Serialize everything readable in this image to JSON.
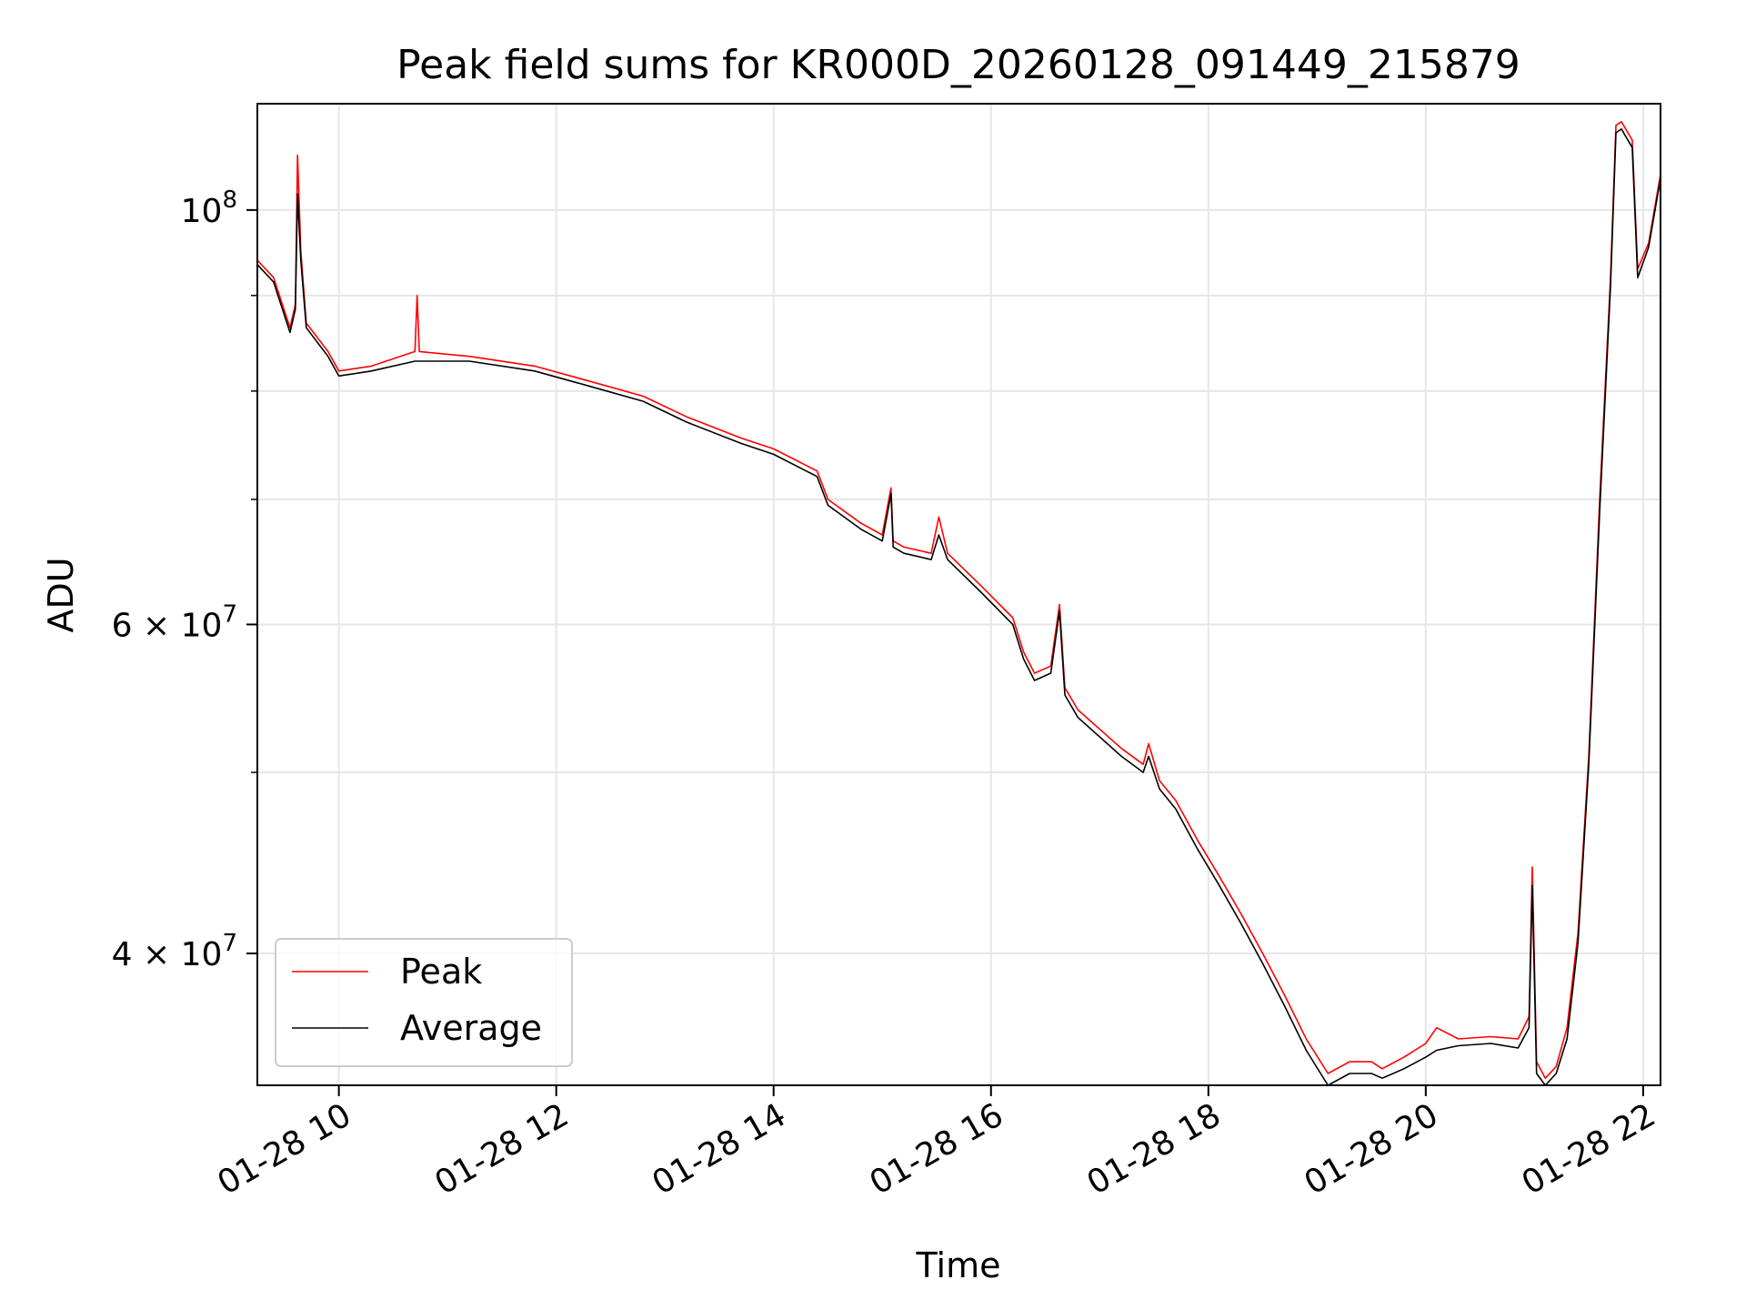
{
  "chart_data": {
    "type": "line",
    "title": "Peak field sums for KR000D_20260128_091449_215879",
    "xlabel": "Time",
    "ylabel": "ADU",
    "yscale": "log",
    "xlim": [
      9.25,
      22.16
    ],
    "ylim": [
      34000000,
      114000000
    ],
    "grid": true,
    "legend_position": "lower-left",
    "x_ticks": [
      {
        "value": 10,
        "label": "01-28 10"
      },
      {
        "value": 12,
        "label": "01-28 12"
      },
      {
        "value": 14,
        "label": "01-28 14"
      },
      {
        "value": 16,
        "label": "01-28 16"
      },
      {
        "value": 18,
        "label": "01-28 18"
      },
      {
        "value": 20,
        "label": "01-28 20"
      },
      {
        "value": 22,
        "label": "01-28 22"
      }
    ],
    "y_major_ticks": [
      {
        "value": 40000000,
        "mantissa": "4",
        "base": "10",
        "exp": "7"
      },
      {
        "value": 60000000,
        "mantissa": "6",
        "base": "10",
        "exp": "7"
      },
      {
        "value": 100000000,
        "mantissa": "",
        "base": "10",
        "exp": "8"
      }
    ],
    "y_minor_grid": [
      50000000,
      70000000,
      80000000,
      90000000
    ],
    "x_unit": "hour of day, 2026-01-28",
    "series": [
      {
        "name": "Peak",
        "color": "#ff0000",
        "x": [
          9.25,
          9.4,
          9.55,
          9.6,
          9.62,
          9.65,
          9.7,
          9.9,
          10.0,
          10.3,
          10.7,
          10.72,
          10.74,
          11.2,
          11.8,
          12.3,
          12.8,
          13.2,
          13.7,
          14.0,
          14.4,
          14.5,
          14.8,
          15.0,
          15.08,
          15.1,
          15.2,
          15.45,
          15.52,
          15.6,
          15.9,
          16.2,
          16.3,
          16.4,
          16.55,
          16.63,
          16.68,
          16.8,
          17.2,
          17.4,
          17.45,
          17.55,
          17.7,
          17.9,
          18.1,
          18.3,
          18.5,
          18.7,
          18.9,
          19.1,
          19.3,
          19.5,
          19.6,
          19.8,
          20.0,
          20.1,
          20.3,
          20.6,
          20.85,
          20.95,
          20.98,
          21.02,
          21.1,
          21.2,
          21.3,
          21.4,
          21.5,
          21.6,
          21.7,
          21.75,
          21.8,
          21.9,
          21.95,
          22.05,
          22.16
        ],
        "values": [
          94000000,
          92000000,
          86500000,
          89000000,
          107000000,
          95000000,
          87000000,
          84000000,
          82000000,
          82500000,
          84000000,
          90000000,
          84000000,
          83500000,
          82500000,
          81000000,
          79500000,
          77500000,
          75500000,
          74500000,
          72500000,
          70000000,
          68000000,
          67000000,
          71000000,
          66500000,
          66000000,
          65500000,
          68500000,
          65500000,
          63000000,
          60500000,
          58000000,
          56500000,
          57000000,
          61500000,
          55500000,
          54000000,
          51500000,
          50500000,
          51800000,
          49500000,
          48300000,
          46000000,
          44000000,
          42000000,
          40000000,
          38000000,
          36000000,
          34500000,
          35000000,
          35000000,
          34700000,
          35200000,
          35800000,
          36500000,
          36000000,
          36100000,
          36000000,
          37000000,
          44500000,
          35000000,
          34300000,
          34800000,
          36500000,
          41000000,
          51000000,
          70000000,
          92000000,
          111000000,
          111500000,
          109000000,
          93000000,
          96000000,
          104500000
        ]
      },
      {
        "name": "Average",
        "color": "#000000",
        "x": [
          9.25,
          9.4,
          9.55,
          9.6,
          9.62,
          9.65,
          9.7,
          9.9,
          10.0,
          10.3,
          10.7,
          10.72,
          10.74,
          11.2,
          11.8,
          12.3,
          12.8,
          13.2,
          13.7,
          14.0,
          14.4,
          14.5,
          14.8,
          15.0,
          15.08,
          15.1,
          15.2,
          15.45,
          15.52,
          15.6,
          15.9,
          16.2,
          16.3,
          16.4,
          16.55,
          16.63,
          16.68,
          16.8,
          17.2,
          17.4,
          17.45,
          17.55,
          17.7,
          17.9,
          18.1,
          18.3,
          18.5,
          18.7,
          18.9,
          19.1,
          19.3,
          19.5,
          19.6,
          19.8,
          20.0,
          20.1,
          20.3,
          20.6,
          20.85,
          20.95,
          20.98,
          21.02,
          21.1,
          21.2,
          21.3,
          21.4,
          21.5,
          21.6,
          21.7,
          21.75,
          21.8,
          21.9,
          21.95,
          22.05,
          22.16
        ],
        "values": [
          93500000,
          91500000,
          86000000,
          88500000,
          102000000,
          94000000,
          86500000,
          83500000,
          81500000,
          82000000,
          83000000,
          83000000,
          83000000,
          83000000,
          82000000,
          80500000,
          79000000,
          77000000,
          75000000,
          74000000,
          72000000,
          69500000,
          67500000,
          66500000,
          70500000,
          66000000,
          65500000,
          65000000,
          67000000,
          65000000,
          62500000,
          60000000,
          57500000,
          56000000,
          56500000,
          61000000,
          55000000,
          53500000,
          51000000,
          50000000,
          51000000,
          49000000,
          47800000,
          45500000,
          43500000,
          41500000,
          39500000,
          37500000,
          35500000,
          34000000,
          34500000,
          34500000,
          34300000,
          34700000,
          35200000,
          35500000,
          35700000,
          35800000,
          35600000,
          36500000,
          43500000,
          34500000,
          34000000,
          34500000,
          36000000,
          40500000,
          50500000,
          69000000,
          91000000,
          110000000,
          110500000,
          108000000,
          92000000,
          95500000,
          104000000
        ]
      }
    ]
  }
}
